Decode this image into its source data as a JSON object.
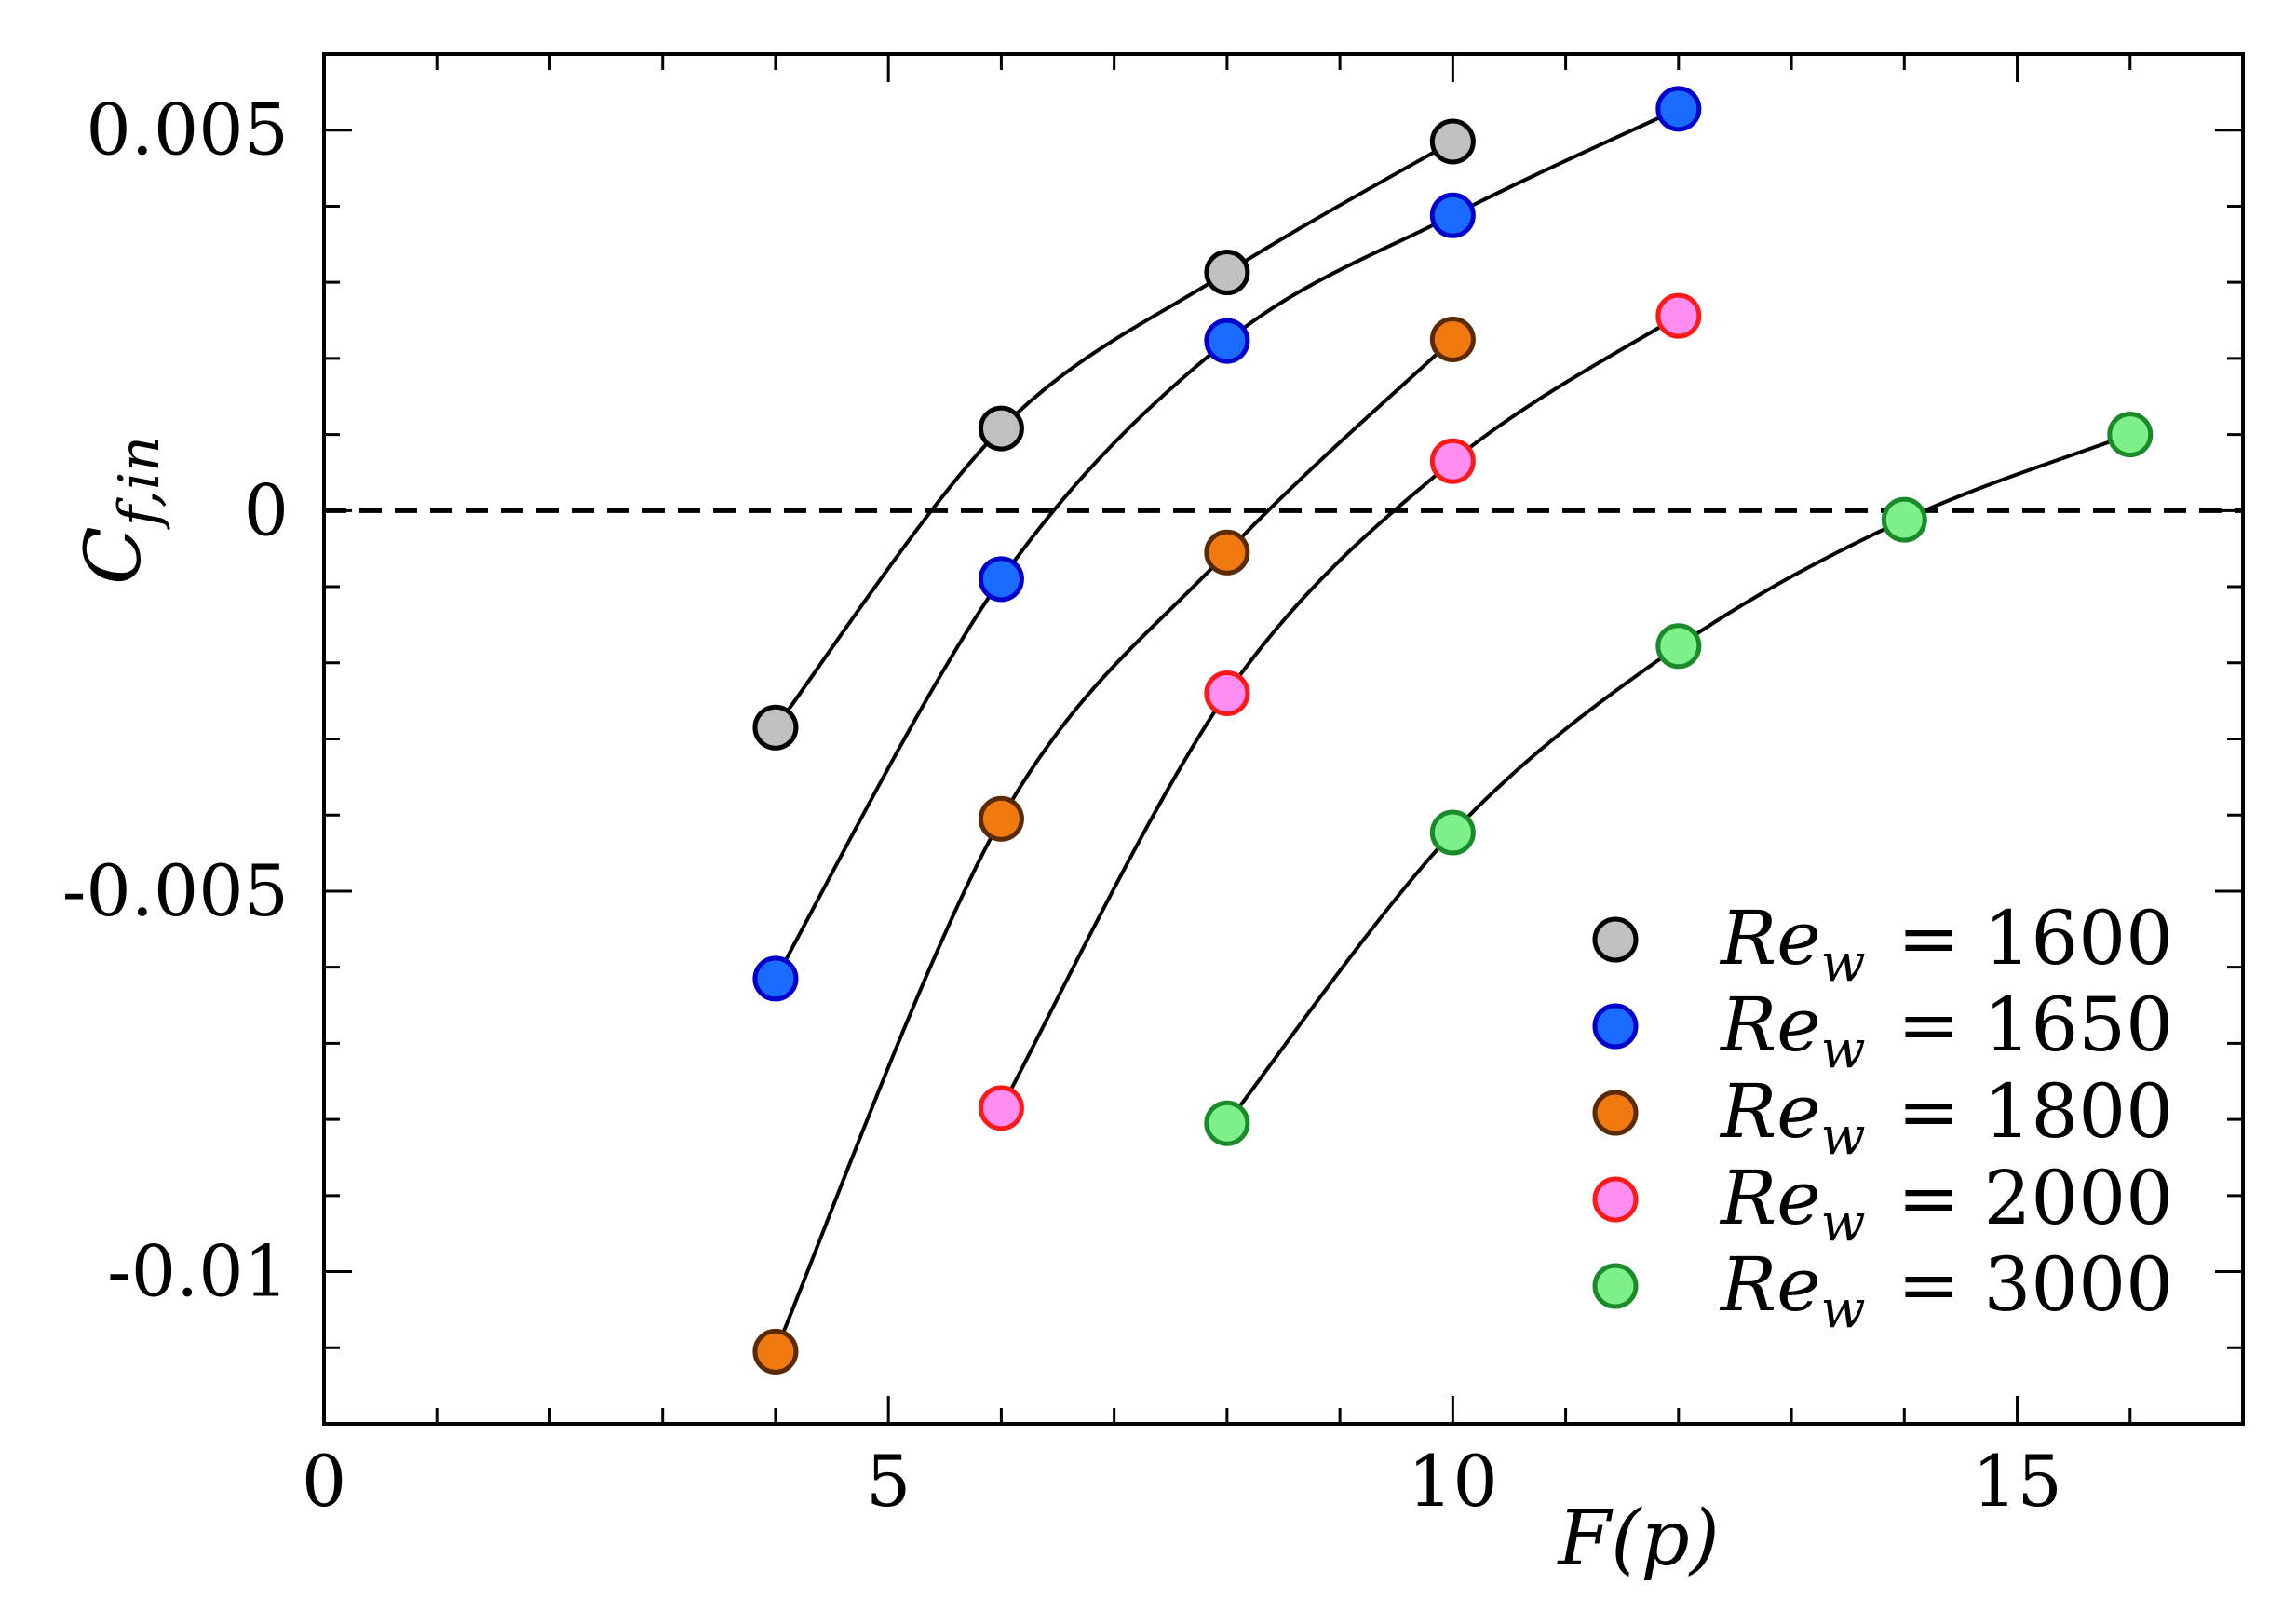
{
  "chart_data": {
    "type": "line",
    "title": "",
    "xlabel": "F(p)",
    "ylabel": "C_f,in",
    "ylabel_main": "C",
    "ylabel_sub": "f,in",
    "xlim": [
      0,
      17
    ],
    "ylim": [
      -0.012,
      0.006
    ],
    "x_ticks": [
      0,
      5,
      10,
      15
    ],
    "x_tick_labels": [
      "0",
      "5",
      "10",
      "15"
    ],
    "y_ticks": [
      -0.01,
      -0.005,
      0,
      0.005
    ],
    "y_tick_labels": [
      "-0.01",
      "-0.005",
      "0",
      "0.005"
    ],
    "x_minor_step": 1,
    "y_minor_step": 0.001,
    "grid": false,
    "reference_line": {
      "y": 0,
      "style": "dashed",
      "color": "#000000"
    },
    "legend_position": "bottom-right",
    "series": [
      {
        "name": "Re_w = 1600",
        "label_main": "Re",
        "label_sub": "w",
        "label_value": "= 1600",
        "fill": "#c0c0c0",
        "edge": "#000000",
        "x": [
          4,
          6,
          8,
          10
        ],
        "y": [
          -0.00285,
          0.00108,
          0.00313,
          0.00485
        ]
      },
      {
        "name": "Re_w = 1650",
        "label_main": "Re",
        "label_sub": "w",
        "label_value": "= 1650",
        "fill": "#1a6cff",
        "edge": "#0000cc",
        "x": [
          4,
          6,
          8,
          10,
          12
        ],
        "y": [
          -0.00615,
          -0.0009,
          0.00223,
          0.00388,
          0.00528
        ]
      },
      {
        "name": "Re_w = 1800",
        "label_main": "Re",
        "label_sub": "w",
        "label_value": "= 1800",
        "fill": "#f07a10",
        "edge": "#5a2a00",
        "x": [
          4,
          6,
          8,
          10
        ],
        "y": [
          -0.01105,
          -0.00405,
          -0.00055,
          0.00225
        ]
      },
      {
        "name": "Re_w = 2000",
        "label_main": "Re",
        "label_sub": "w",
        "label_value": "= 2000",
        "fill": "#ff8ef0",
        "edge": "#ff1a1a",
        "x": [
          6,
          8,
          10,
          12
        ],
        "y": [
          -0.00785,
          -0.0024,
          0.00065,
          0.00256
        ]
      },
      {
        "name": "Re_w = 3000",
        "label_main": "Re",
        "label_sub": "w",
        "label_value": "= 3000",
        "fill": "#7ef08a",
        "edge": "#1a8a2a",
        "x": [
          8,
          10,
          12,
          14,
          16
        ],
        "y": [
          -0.00805,
          -0.00423,
          -0.00178,
          -0.00012,
          0.001
        ]
      }
    ]
  }
}
